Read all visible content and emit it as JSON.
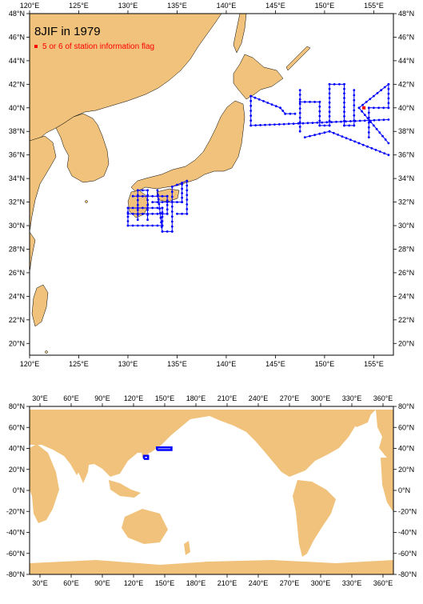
{
  "title": "8JIF in 1979",
  "legend": {
    "label": "5 or 6 of station information flag",
    "color": "#ff0000"
  },
  "colors": {
    "land": "#f0c27b",
    "sea": "#ffffff",
    "track": "#0000ff",
    "flag": "#ff0000",
    "frame": "#000000"
  },
  "regional_map": {
    "lon_range": [
      120,
      157
    ],
    "lat_range": [
      19,
      48
    ],
    "x_ticks": [
      "120°E",
      "125°E",
      "130°E",
      "135°E",
      "140°E",
      "145°E",
      "150°E",
      "155°E"
    ],
    "y_ticks": [
      "20°N",
      "22°N",
      "24°N",
      "26°N",
      "28°N",
      "30°N",
      "32°N",
      "34°N",
      "36°N",
      "38°N",
      "40°N",
      "42°N",
      "44°N",
      "46°N",
      "48°N"
    ],
    "tracks": [
      [
        [
          130.0,
          30.0
        ],
        [
          130.0,
          31.5
        ],
        [
          133.5,
          31.5
        ],
        [
          133.5,
          30.0
        ],
        [
          130.0,
          30.0
        ]
      ],
      [
        [
          130.0,
          31.0
        ],
        [
          134.0,
          31.0
        ],
        [
          134.0,
          32.5
        ],
        [
          130.5,
          32.5
        ]
      ],
      [
        [
          131.0,
          30.5
        ],
        [
          131.0,
          33.0
        ],
        [
          132.0,
          33.0
        ],
        [
          132.0,
          30.5
        ]
      ],
      [
        [
          133.0,
          33.0
        ],
        [
          133.5,
          29.5
        ],
        [
          134.5,
          29.5
        ],
        [
          134.5,
          33.3
        ],
        [
          136.0,
          33.8
        ],
        [
          136.0,
          31.0
        ],
        [
          135.0,
          31.0
        ]
      ],
      [
        [
          132.5,
          32.0
        ],
        [
          135.5,
          32.0
        ],
        [
          135.5,
          33.5
        ]
      ],
      [
        [
          142.5,
          38.5
        ],
        [
          156.5,
          39.0
        ]
      ],
      [
        [
          142.5,
          38.5
        ],
        [
          142.5,
          41.0
        ],
        [
          145.5,
          40.0
        ],
        [
          146.0,
          39.5
        ],
        [
          147.0,
          39.5
        ]
      ],
      [
        [
          147.5,
          38.0
        ],
        [
          147.5,
          41.5
        ]
      ],
      [
        [
          147.5,
          40.5
        ],
        [
          149.5,
          40.5
        ],
        [
          149.5,
          38.5
        ],
        [
          150.5,
          38.5
        ],
        [
          150.5,
          42.0
        ],
        [
          152.0,
          42.0
        ],
        [
          152.0,
          38.5
        ],
        [
          153.0,
          38.5
        ],
        [
          153.0,
          41.5
        ]
      ],
      [
        [
          154.5,
          37.5
        ],
        [
          154.5,
          40.0
        ],
        [
          156.5,
          40.0
        ],
        [
          156.5,
          42.0
        ],
        [
          153.5,
          40.0
        ],
        [
          156.5,
          37.0
        ]
      ],
      [
        [
          156.5,
          36.0
        ],
        [
          153.5,
          37.0
        ],
        [
          150.5,
          38.0
        ],
        [
          148.0,
          37.5
        ]
      ]
    ],
    "flagged_stations": [
      [
        154.0,
        40.0
      ]
    ]
  },
  "global_map": {
    "lon_range": [
      20,
      370
    ],
    "lat_range": [
      -80,
      80
    ],
    "x_ticks": [
      "30°E",
      "60°E",
      "90°E",
      "120°E",
      "150°E",
      "180°E",
      "210°E",
      "240°E",
      "270°E",
      "300°E",
      "330°E",
      "360°E"
    ],
    "y_ticks": [
      "-80°N",
      "-60°N",
      "-40°N",
      "-20°N",
      "0°N",
      "20°N",
      "40°N",
      "60°N",
      "80°N"
    ],
    "tracks": [
      [
        [
          130,
          30
        ],
        [
          134,
          30
        ],
        [
          134,
          33
        ],
        [
          130,
          33
        ],
        [
          130,
          30
        ]
      ],
      [
        [
          142.5,
          38.5
        ],
        [
          156.5,
          38.5
        ],
        [
          156.5,
          41
        ],
        [
          142.5,
          41
        ],
        [
          142.5,
          38.5
        ]
      ]
    ]
  }
}
